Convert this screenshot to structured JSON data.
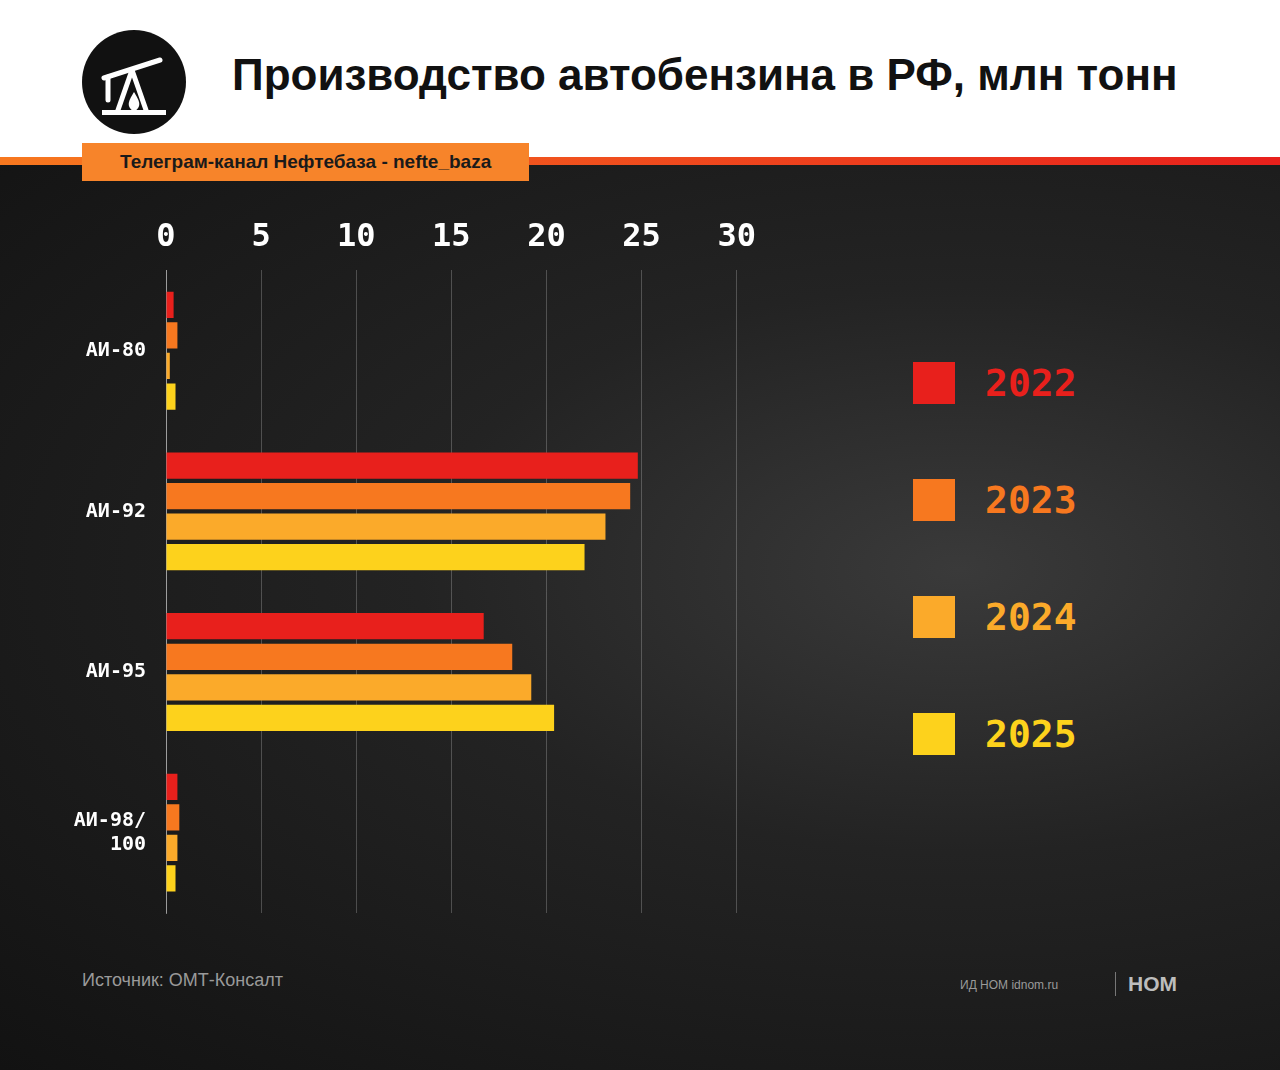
{
  "chart_data": {
    "type": "bar",
    "orientation": "horizontal",
    "title": "Производство автобензина в РФ, млн тонн",
    "subtitle": "Телеграм-канал Нефтебаза - nefte_baza",
    "source": "Источник: ОМТ-Консалт",
    "annotations": [
      "ИД НОМ idnom.ru",
      "НОМ"
    ],
    "categories": [
      "АИ-80",
      "АИ-92",
      "АИ-95",
      "АИ-98/100"
    ],
    "series": [
      {
        "name": "2022",
        "color": "#e8201c",
        "values": [
          0.4,
          24.8,
          16.7,
          0.6
        ]
      },
      {
        "name": "2023",
        "color": "#f7781f",
        "values": [
          0.6,
          24.4,
          18.2,
          0.7
        ]
      },
      {
        "name": "2024",
        "color": "#fbaa2a",
        "values": [
          0.2,
          23.1,
          19.2,
          0.6
        ]
      },
      {
        "name": "2025",
        "color": "#fdd21c",
        "values": [
          0.5,
          22.0,
          20.4,
          0.5
        ]
      }
    ],
    "xlim": [
      0,
      30
    ],
    "xticks": [
      0,
      5,
      10,
      15,
      20,
      25,
      30
    ],
    "grid": true,
    "legend": "right",
    "data_labels": false
  }
}
